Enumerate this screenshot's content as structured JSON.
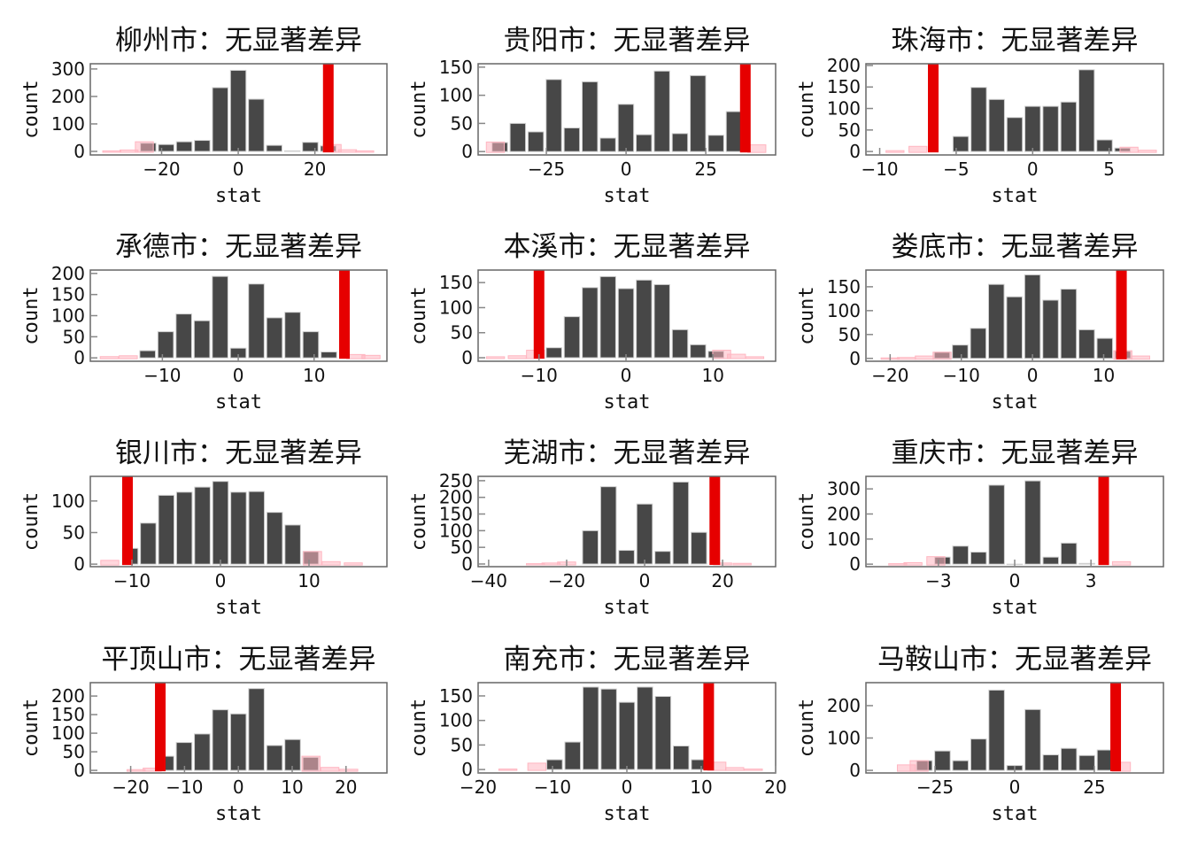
{
  "chart_data": [
    {
      "type": "bar",
      "title": "柳州市：无显著差异",
      "xlabel": "stat",
      "ylabel": "count",
      "xlim": [
        -38.6,
        38.8
      ],
      "ylim": [
        -13,
        319
      ],
      "xticks": [
        -20,
        0,
        20
      ],
      "yticks": [
        0,
        100,
        200,
        300
      ],
      "bin_width": 4.7,
      "first_center": -23.5,
      "counts": [
        30,
        25,
        35,
        40,
        232,
        295,
        190,
        22,
        2,
        33,
        20
      ],
      "observed_stat": 23.5,
      "null_overlay": [
        [
          -33,
          2
        ],
        [
          -28.5,
          5
        ],
        [
          -24.5,
          35
        ],
        [
          24.5,
          25
        ],
        [
          28.5,
          6
        ],
        [
          33,
          2
        ]
      ]
    },
    {
      "type": "bar",
      "title": "贵阳市：无显著差异",
      "xlabel": "stat",
      "ylabel": "count",
      "xlim": [
        -46.4,
        46.9
      ],
      "ylim": [
        -6,
        156
      ],
      "xticks": [
        -25,
        0,
        25
      ],
      "yticks": [
        0,
        50,
        100,
        150
      ],
      "bin_width": 5.65,
      "first_center": -39.6,
      "counts": [
        16,
        50,
        35,
        128,
        42,
        124,
        24,
        84,
        30,
        143,
        32,
        135,
        29,
        71
      ],
      "observed_stat": 37.4,
      "null_overlay": [
        [
          -41,
          17
        ],
        [
          41,
          12
        ]
      ]
    },
    {
      "type": "bar",
      "title": "珠海市：无显著差异",
      "xlabel": "stat",
      "ylabel": "count",
      "xlim": [
        -10.9,
        8.55
      ],
      "ylim": [
        -8,
        204
      ],
      "xticks": [
        -10,
        -5,
        0,
        5
      ],
      "yticks": [
        0,
        50,
        100,
        150,
        200
      ],
      "bin_width": 1.175,
      "first_center": -4.7,
      "counts": [
        35,
        149,
        121,
        79,
        105,
        105,
        115,
        190,
        27,
        8
      ],
      "observed_stat": -6.5,
      "null_overlay": [
        [
          -9,
          2
        ],
        [
          -7.5,
          12
        ],
        [
          6.3,
          10
        ],
        [
          7.5,
          3
        ]
      ]
    },
    {
      "type": "bar",
      "title": "承德市：无显著差异",
      "xlabel": "stat",
      "ylabel": "count",
      "xlim": [
        -19.5,
        19.6
      ],
      "ylim": [
        -8,
        208
      ],
      "xticks": [
        -10,
        0,
        10
      ],
      "yticks": [
        0,
        50,
        100,
        150,
        200
      ],
      "bin_width": 2.39,
      "first_center": -11.95,
      "counts": [
        17,
        62,
        104,
        88,
        193,
        23,
        175,
        95,
        108,
        62,
        14
      ],
      "observed_stat": 14.0,
      "null_overlay": [
        [
          -17,
          3
        ],
        [
          -14.5,
          5
        ],
        [
          15.5,
          8
        ],
        [
          17.5,
          6
        ]
      ]
    },
    {
      "type": "bar",
      "title": "本溪市：无显著差异",
      "xlabel": "stat",
      "ylabel": "count",
      "xlim": [
        -17,
        17.2
      ],
      "ylim": [
        -7,
        175
      ],
      "xticks": [
        -10,
        0,
        10
      ],
      "yticks": [
        0,
        50,
        100,
        150
      ],
      "bin_width": 2.07,
      "first_center": -8.28,
      "counts": [
        20,
        82,
        140,
        162,
        138,
        155,
        146,
        56,
        26,
        13
      ],
      "observed_stat": -10,
      "null_overlay": [
        [
          -15,
          2
        ],
        [
          -12.5,
          4
        ],
        [
          -10.4,
          15
        ],
        [
          11,
          15
        ],
        [
          12.7,
          7
        ],
        [
          14.8,
          2
        ]
      ]
    },
    {
      "type": "bar",
      "title": "娄底市：无显著差异",
      "xlabel": "stat",
      "ylabel": "count",
      "xlim": [
        -23.4,
        18.4
      ],
      "ylim": [
        -6,
        185
      ],
      "xticks": [
        -20,
        -10,
        0,
        10
      ],
      "yticks": [
        0,
        50,
        100,
        150
      ],
      "bin_width": 2.54,
      "first_center": -12.7,
      "counts": [
        13,
        28,
        63,
        155,
        129,
        175,
        122,
        145,
        60,
        42,
        15
      ],
      "observed_stat": 12.5,
      "null_overlay": [
        [
          -20,
          1
        ],
        [
          -17.7,
          2
        ],
        [
          -15.2,
          5
        ],
        [
          -12.7,
          13
        ],
        [
          12.7,
          16
        ],
        [
          15.2,
          5
        ]
      ]
    },
    {
      "type": "bar",
      "title": "银川市：无显著差异",
      "xlabel": "stat",
      "ylabel": "count",
      "xlim": [
        -14.7,
        18.8
      ],
      "ylim": [
        -4,
        139
      ],
      "xticks": [
        -10,
        0,
        10
      ],
      "yticks": [
        0,
        50,
        100
      ],
      "bin_width": 2.04,
      "first_center": -10.2,
      "counts": [
        25,
        65,
        109,
        114,
        122,
        131,
        114,
        115,
        82,
        62,
        20
      ],
      "observed_stat": -10.5,
      "null_overlay": [
        [
          -12.5,
          6
        ],
        [
          10.4,
          20
        ],
        [
          12.5,
          4
        ],
        [
          15,
          2
        ]
      ]
    },
    {
      "type": "bar",
      "title": "芜湖市：无显著差异",
      "xlabel": "stat",
      "ylabel": "count",
      "xlim": [
        -42.7,
        33.6
      ],
      "ylim": [
        -8,
        263
      ],
      "xticks": [
        -40,
        -20,
        0,
        20
      ],
      "yticks": [
        0,
        50,
        100,
        150,
        200,
        250
      ],
      "bin_width": 4.64,
      "first_center": -13.92,
      "counts": [
        100,
        232,
        41,
        180,
        38,
        246,
        95
      ],
      "observed_stat": 18,
      "null_overlay": [
        [
          -28,
          1
        ],
        [
          -24,
          3
        ],
        [
          -20,
          6
        ],
        [
          20,
          3
        ],
        [
          25,
          2
        ]
      ]
    },
    {
      "type": "bar",
      "title": "重庆市：无显著差异",
      "xlabel": "stat",
      "ylabel": "count",
      "xlim": [
        -5.85,
        5.85
      ],
      "ylim": [
        -10,
        350
      ],
      "xticks": [
        -3,
        0,
        3
      ],
      "yticks": [
        0,
        100,
        200,
        300
      ],
      "bin_width": 0.71,
      "first_center": -2.84,
      "counts": [
        28,
        72,
        48,
        315,
        0,
        332,
        28,
        84,
        3
      ],
      "observed_stat": 3.5,
      "null_overlay": [
        [
          -4.6,
          2
        ],
        [
          -4,
          6
        ],
        [
          -3.1,
          30
        ],
        [
          4.2,
          10
        ]
      ]
    },
    {
      "type": "bar",
      "title": "平顶山市：无显著差异",
      "xlabel": "stat",
      "ylabel": "count",
      "xlim": [
        -27.5,
        27.6
      ],
      "ylim": [
        -7,
        236
      ],
      "xticks": [
        -20,
        -10,
        0,
        10,
        20
      ],
      "yticks": [
        0,
        50,
        100,
        150,
        200
      ],
      "bin_width": 3.36,
      "first_center": -13.44,
      "counts": [
        38,
        75,
        98,
        163,
        152,
        220,
        67,
        83,
        35
      ],
      "observed_stat": -14.5,
      "null_overlay": [
        [
          -19,
          2
        ],
        [
          -16,
          6
        ],
        [
          13.5,
          38
        ],
        [
          17,
          8
        ],
        [
          20.5,
          3
        ]
      ]
    },
    {
      "type": "bar",
      "title": "南充市：无显著差异",
      "xlabel": "stat",
      "ylabel": "count",
      "xlim": [
        -20,
        20
      ],
      "ylim": [
        -7,
        177
      ],
      "xticks": [
        -20,
        -10,
        0,
        10,
        20
      ],
      "yticks": [
        0,
        50,
        100,
        150
      ],
      "bin_width": 2.43,
      "first_center": -9.72,
      "counts": [
        20,
        56,
        168,
        164,
        137,
        168,
        149,
        48,
        20
      ],
      "observed_stat": 11,
      "null_overlay": [
        [
          -16,
          1
        ],
        [
          -12.1,
          13
        ],
        [
          12.1,
          15
        ],
        [
          14.5,
          4
        ],
        [
          17,
          1
        ]
      ]
    },
    {
      "type": "bar",
      "title": "马鞍山市：无显著差异",
      "xlabel": "stat",
      "ylabel": "count",
      "xlim": [
        -46.7,
        46.7
      ],
      "ylim": [
        -8,
        271
      ],
      "xticks": [
        -25,
        0,
        25
      ],
      "yticks": [
        0,
        100,
        200
      ],
      "bin_width": 5.67,
      "first_center": -28.35,
      "counts": [
        30,
        60,
        30,
        97,
        248,
        15,
        188,
        48,
        68,
        46,
        63
      ],
      "observed_stat": 31.7,
      "null_overlay": [
        [
          -34,
          17
        ],
        [
          -30,
          30
        ],
        [
          33.5,
          25
        ]
      ]
    }
  ],
  "colors": {
    "bar": "#474747",
    "observed": "#e60000",
    "null_overlay": "#ffb6c1",
    "frame": "#666666"
  }
}
